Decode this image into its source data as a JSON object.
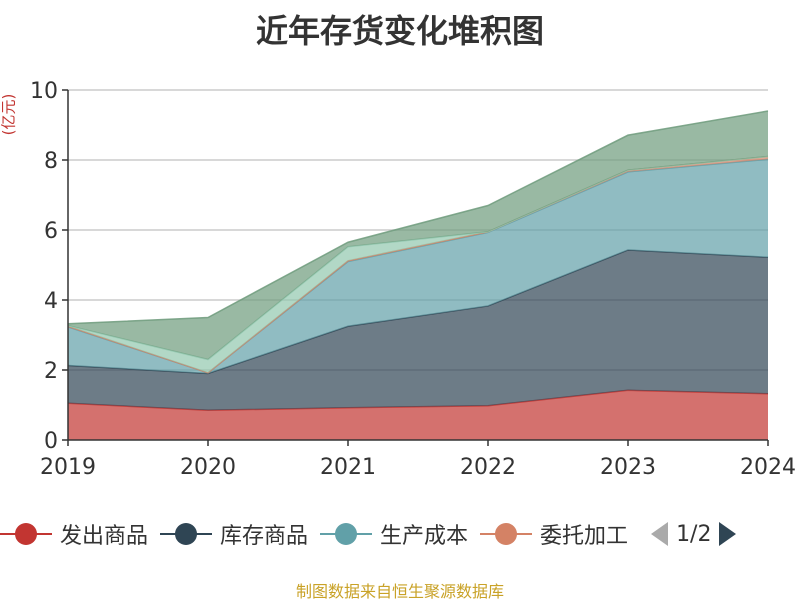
{
  "chart_data": {
    "type": "area",
    "stacked": true,
    "title": "近年存货变化堆积图",
    "unit": "(亿元)",
    "x": [
      "2019",
      "2020",
      "2021",
      "2022",
      "2023",
      "2024"
    ],
    "ylim": [
      0,
      10
    ],
    "yticks": [
      0,
      2,
      4,
      6,
      8,
      10
    ],
    "grid": true,
    "legend_position": "bottom",
    "legend_page": "1/2",
    "series": [
      {
        "name": "发出商品",
        "color": "#c23531",
        "values": [
          1.05,
          0.85,
          0.92,
          0.98,
          1.42,
          1.32
        ]
      },
      {
        "name": "库存商品",
        "color": "#2f4554",
        "values": [
          1.08,
          1.05,
          2.33,
          2.85,
          4.01,
          3.9
        ]
      },
      {
        "name": "生产成本",
        "color": "#61a0a8",
        "values": [
          1.1,
          0.02,
          1.85,
          2.1,
          2.23,
          2.8
        ]
      },
      {
        "name": "委托加工",
        "color": "#d48265",
        "values": [
          0.02,
          0.0,
          0.02,
          0.02,
          0.05,
          0.08
        ]
      },
      {
        "name": "",
        "color": "#91c7ae",
        "values": [
          0.02,
          0.38,
          0.4,
          0.0,
          0.0,
          0.0
        ]
      },
      {
        "name": "",
        "color": "#6e9b7c",
        "values": [
          0.05,
          1.2,
          0.13,
          0.75,
          1.0,
          1.3
        ]
      }
    ],
    "source": "制图数据来自恒生聚源数据库"
  }
}
